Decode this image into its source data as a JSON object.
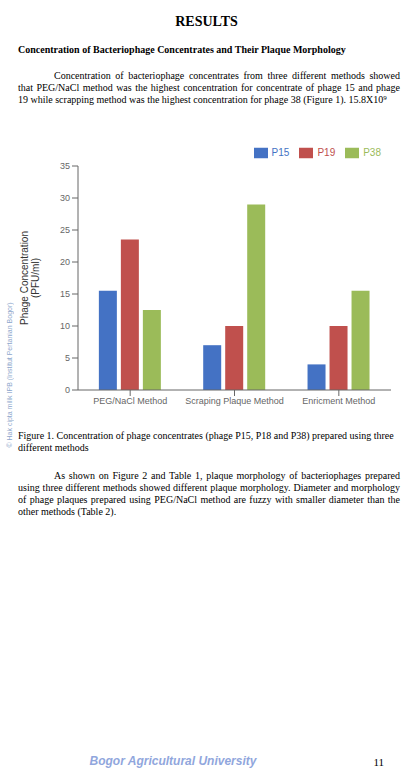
{
  "chart_data": {
    "type": "bar",
    "title": "RESULTS",
    "subtitle": "Concentration of Bacteriophage Concentrates and Their Plaque Morphology",
    "categories": [
      "PEG/NaCl Method",
      "Scraping Plaque Method",
      "Enricment Method"
    ],
    "series": [
      {
        "name": "P15",
        "color": "#4472C4",
        "values": [
          15.5,
          7.0,
          4.0
        ]
      },
      {
        "name": "P19",
        "color": "#C0504D",
        "values": [
          23.5,
          10.0,
          10.0
        ]
      },
      {
        "name": "P38",
        "color": "#9BBB59",
        "values": [
          12.5,
          29.0,
          15.5
        ]
      }
    ],
    "ylabel": "Phage Concentration\n(PFU/ml)",
    "ylim": [
      0,
      35
    ],
    "yticks": [
      0,
      5,
      10,
      15,
      20,
      25,
      30,
      35
    ],
    "legend": "upper right",
    "grid": false,
    "annotations": [
      "Concentration of bacteriophage concentrates from three different methods showed that PEG/NaCl method was the highest concentration for concentrate of phage 15 and phage 19 while scrapping method was the highest concentration for phage 38 (Figure 1).  15.8X10⁹",
      "Figure 1. Concentration of phage concentrates (phage P15, P18 and P38) prepared using three different methods",
      "As shown on Figure 2 and Table 1, plaque morphology of bacteriophages prepared using three different methods showed different plaque morphology. Diameter and morphology of phage plaques prepared using PEG/NaCl method are fuzzy with smaller diameter than the other methods (Table 2).",
      "© Hak cipta milik IPB (Institut Pertanian Bogor)",
      "Bogor Agricultural University",
      "11"
    ]
  }
}
